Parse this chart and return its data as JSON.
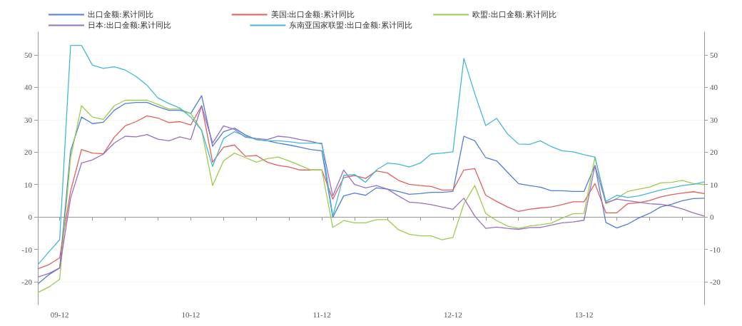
{
  "chart_data": {
    "type": "line",
    "categories": [
      null,
      null,
      "09-12",
      null,
      null,
      null,
      null,
      null,
      null,
      null,
      null,
      null,
      null,
      null,
      "10-12",
      null,
      null,
      null,
      null,
      null,
      null,
      null,
      null,
      null,
      null,
      null,
      "11-12",
      null,
      null,
      null,
      null,
      null,
      null,
      null,
      null,
      null,
      null,
      null,
      "12-12",
      null,
      null,
      null,
      null,
      null,
      null,
      null,
      null,
      null,
      null,
      null,
      "13-12",
      null,
      null,
      null,
      null,
      null,
      null,
      null,
      null,
      null,
      null,
      null
    ],
    "series": [
      {
        "name": "出口金额:累计同比",
        "color": "#4f7fd8",
        "values": [
          -20.6,
          -17.8,
          -15.7,
          20.4,
          30.8,
          28.8,
          29.2,
          32.9,
          35,
          35.3,
          35.3,
          34,
          32.9,
          32.9,
          31.9,
          37.4,
          21.8,
          26.3,
          27.4,
          25.3,
          23.9,
          23.5,
          22.8,
          22.2,
          21.5,
          20.8,
          20.4,
          -0.1,
          6.5,
          7.4,
          6.7,
          9,
          8.6,
          7.9,
          7,
          7.2,
          7.6,
          7.6,
          7.9,
          24.9,
          23.5,
          18.3,
          17.3,
          13.8,
          10.3,
          9.7,
          9.2,
          8.1,
          8.1,
          7.9,
          7.9,
          15.9,
          -1.7,
          -3.4,
          -2.2,
          -0.3,
          1.1,
          3.1,
          3.9,
          5,
          5.7,
          5.8
        ]
      },
      {
        "name": "美国:出口金额:累计同比",
        "color": "#e0605c",
        "values": [
          -16,
          -14.7,
          -12.6,
          8,
          20.8,
          19.7,
          19.5,
          24.6,
          28.1,
          29.4,
          31.2,
          30.5,
          29.1,
          29.4,
          28.4,
          34.3,
          16.9,
          21.5,
          22.2,
          18.7,
          19,
          16.9,
          15.9,
          15.4,
          14.5,
          14.5,
          14.5,
          5.5,
          12.1,
          12.8,
          11.9,
          14.2,
          13.6,
          11.3,
          10.1,
          9.7,
          9.4,
          8.3,
          8.3,
          14.5,
          14.9,
          6.7,
          4.8,
          3.1,
          1.7,
          2.4,
          2.8,
          3.1,
          3.8,
          4.7,
          4.7,
          10.3,
          1.3,
          1.3,
          4.1,
          4.4,
          5.1,
          6.2,
          6.9,
          7.4,
          7.8,
          7.2
        ]
      },
      {
        "name": "欧盟:出口金额:累计同比",
        "color": "#9ccc4c",
        "values": [
          -23.3,
          -21.6,
          -19.2,
          18.3,
          34.3,
          30.8,
          30.1,
          34.3,
          36,
          36,
          36,
          34.7,
          33.3,
          33.3,
          31.9,
          26.7,
          9.7,
          17.3,
          19.7,
          18.3,
          16.9,
          18,
          18.5,
          17.3,
          15.9,
          14.5,
          14.5,
          -3.2,
          -1.1,
          -1.8,
          -1.8,
          -0.8,
          -0.8,
          -3.9,
          -5.3,
          -5.8,
          -5.8,
          -7,
          -6.3,
          4,
          9.7,
          1.1,
          -1.1,
          -2.8,
          -3.5,
          -2.8,
          -2.4,
          -1.9,
          -0.3,
          1,
          1.1,
          18.5,
          4.1,
          5.7,
          7.9,
          8.6,
          9.2,
          10.5,
          10.7,
          11.3,
          10.3,
          10
        ]
      },
      {
        "name": "日本:出口金额:累计同比",
        "color": "#9a70c4",
        "values": [
          -18.5,
          -17.4,
          -15.7,
          5.8,
          16.6,
          17.6,
          19.4,
          22.8,
          24.9,
          24.7,
          25.4,
          24,
          23.5,
          24.7,
          23.9,
          34.3,
          22.8,
          28.1,
          27,
          24.6,
          24.2,
          23.9,
          24.9,
          24.6,
          23.9,
          23.3,
          22.5,
          6.5,
          14.5,
          10,
          9,
          9.7,
          8.6,
          6.5,
          4.6,
          4.3,
          3.8,
          3.1,
          2.4,
          5.8,
          0.3,
          -3.5,
          -3.1,
          -3.5,
          -3.8,
          -3.3,
          -3.2,
          -2.5,
          -1.8,
          -1.5,
          -1,
          15.9,
          4.4,
          5.5,
          5,
          4.6,
          4.1,
          3.9,
          3.4,
          2.5,
          1.3,
          0.3
        ]
      },
      {
        "name": "东南亚国家联盟:出口金额:累计同比",
        "color": "#44b8d6",
        "values": [
          -14.7,
          -10.8,
          -7,
          52.9,
          52.9,
          46.8,
          45.8,
          46.3,
          45.3,
          43.3,
          40.6,
          36.7,
          35,
          33.6,
          30.8,
          26.7,
          15.6,
          24.2,
          26.3,
          24.9,
          23.9,
          23.5,
          23.5,
          23.2,
          22.8,
          22.8,
          22.8,
          0.3,
          12.8,
          13.1,
          10.7,
          14.5,
          16.6,
          16.3,
          15.4,
          16.6,
          19.4,
          19.7,
          20.1,
          48.9,
          38,
          28.2,
          30.4,
          25.6,
          22.5,
          22.4,
          23.5,
          21.7,
          20.4,
          20.1,
          19.2,
          18.5,
          4.8,
          6.7,
          6,
          6.5,
          7.4,
          8.3,
          9,
          9.7,
          10.1,
          10.8
        ]
      }
    ],
    "ylim": [
      -27,
      57
    ],
    "yticks": [
      -20,
      -10,
      0,
      10,
      20,
      30,
      40,
      50
    ],
    "y2lim": [
      -27,
      57
    ],
    "y2ticks": [
      -20,
      -10,
      0,
      10,
      20,
      30,
      40,
      50
    ],
    "grid": "y",
    "legend": "top",
    "line_style": "solid",
    "marker": "none"
  }
}
